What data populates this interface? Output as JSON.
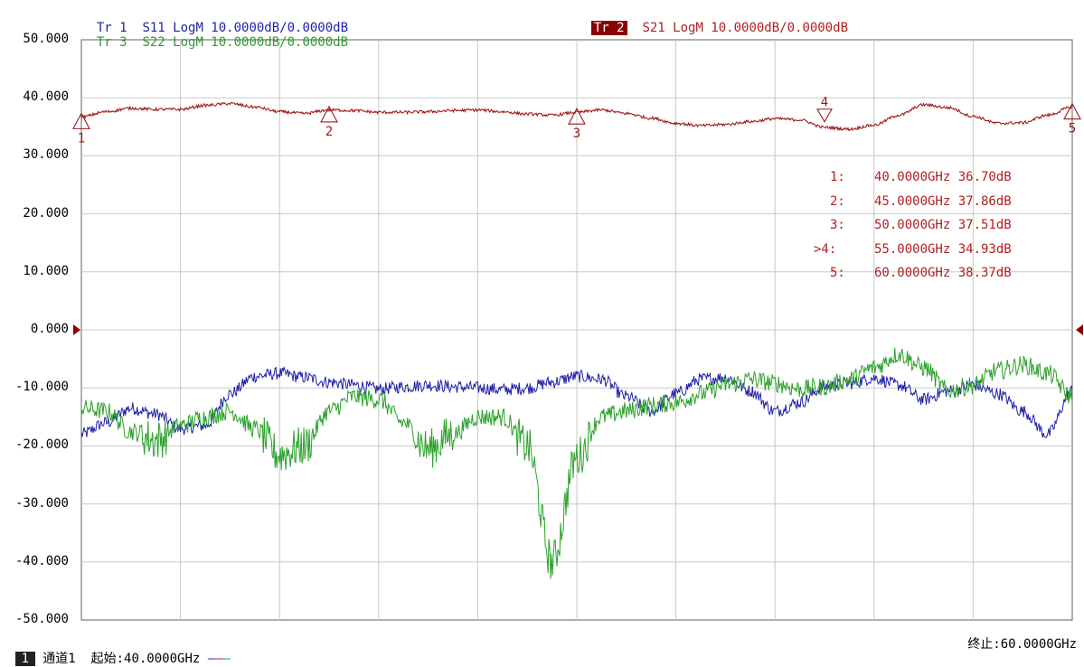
{
  "header": {
    "tr1_label": "Tr 1",
    "tr1_desc": "S11 LogM 10.0000dB/0.0000dB",
    "tr3_label": "Tr 3",
    "tr3_desc": "S22 LogM 10.0000dB/0.0000dB",
    "tr2_label": "Tr 2",
    "tr2_desc": "S21 LogM 10.0000dB/0.0000dB"
  },
  "footer": {
    "channel_num": "1",
    "channel_label": "通道1",
    "start_label": "起始:40.0000GHz",
    "stop_label": "终止:60.0000GHz"
  },
  "marker_table": [
    {
      "id": "1:",
      "freq": "40.0000GHz",
      "value": "36.70dB"
    },
    {
      "id": "2:",
      "freq": "45.0000GHz",
      "value": "37.86dB"
    },
    {
      "id": "3:",
      "freq": "50.0000GHz",
      "value": "37.51dB"
    },
    {
      "id": ">4:",
      "freq": "55.0000GHz",
      "value": "34.93dB"
    },
    {
      "id": "5:",
      "freq": "60.0000GHz",
      "value": "38.37dB"
    }
  ],
  "colors": {
    "s11": "#1f1fa8",
    "s21": "#a01818",
    "s22": "#2aa12a",
    "grid": "#c8c8c8",
    "reference": "#8b0000"
  },
  "chart_data": {
    "type": "line",
    "xlim": [
      40,
      60
    ],
    "ylim": [
      -50,
      50
    ],
    "x_divisions": 10,
    "yticks": [
      "50.000",
      "40.000",
      "30.000",
      "20.000",
      "10.000",
      "0.000",
      "-10.000",
      "-20.000",
      "-30.000",
      "-40.000",
      "-50.000"
    ],
    "reference_level": 0,
    "grid": true,
    "series": [
      {
        "name": "S21",
        "trace": "Tr 2",
        "color": "#a01818",
        "x": [
          40,
          40.5,
          41,
          41.5,
          42,
          42.5,
          43,
          43.5,
          44,
          44.5,
          45,
          45.5,
          46,
          46.5,
          47,
          47.5,
          48,
          48.5,
          49,
          49.5,
          50,
          50.5,
          51,
          51.5,
          52,
          52.5,
          53,
          53.5,
          54,
          54.5,
          55,
          55.5,
          56,
          56.5,
          57,
          57.5,
          58,
          58.5,
          59,
          59.5,
          60
        ],
        "values": [
          36.7,
          37.6,
          38.2,
          38.0,
          38.0,
          38.7,
          39.0,
          38.4,
          37.6,
          37.3,
          37.9,
          37.8,
          37.5,
          37.5,
          37.6,
          37.8,
          37.9,
          37.6,
          37.2,
          37.0,
          37.5,
          37.9,
          37.3,
          36.5,
          35.6,
          35.2,
          35.4,
          35.9,
          36.4,
          36.2,
          34.9,
          34.6,
          35.3,
          37.0,
          38.8,
          38.3,
          36.8,
          35.6,
          35.7,
          37.0,
          38.4
        ]
      },
      {
        "name": "S11",
        "trace": "Tr 1",
        "color": "#1f1fa8",
        "x": [
          40,
          40.5,
          41,
          41.5,
          42,
          42.5,
          43,
          43.5,
          44,
          44.5,
          45,
          45.5,
          46,
          46.5,
          47,
          47.5,
          48,
          48.5,
          49,
          49.5,
          50,
          50.5,
          51,
          51.5,
          52,
          52.5,
          53,
          53.5,
          54,
          54.5,
          55,
          55.5,
          56,
          56.5,
          57,
          57.5,
          58,
          58.5,
          59,
          59.5,
          60
        ],
        "values": [
          -18,
          -16,
          -13.5,
          -14.5,
          -17,
          -16.5,
          -11,
          -8,
          -7.5,
          -8.2,
          -9,
          -9.5,
          -10.2,
          -9.8,
          -9.5,
          -9.8,
          -10.0,
          -10.3,
          -10.0,
          -9.0,
          -8.0,
          -8.5,
          -11.5,
          -14.0,
          -11.0,
          -8.5,
          -8.2,
          -10.5,
          -14.0,
          -12.5,
          -9.8,
          -9.2,
          -8.3,
          -9.5,
          -12.0,
          -10.5,
          -9.5,
          -11.0,
          -14.0,
          -18.0,
          -10.5
        ]
      },
      {
        "name": "S22",
        "trace": "Tr 3",
        "color": "#2aa12a",
        "x": [
          40,
          40.5,
          41,
          41.5,
          42,
          42.5,
          43,
          43.5,
          44,
          44.5,
          45,
          45.5,
          46,
          46.5,
          47,
          47.5,
          48,
          48.5,
          49,
          49.5,
          50,
          50.5,
          51,
          51.5,
          52,
          52.5,
          53,
          53.5,
          54,
          54.5,
          55,
          55.5,
          56,
          56.5,
          57,
          57.5,
          58,
          58.5,
          59,
          59.5,
          60
        ],
        "values": [
          -13.5,
          -14,
          -17.5,
          -19,
          -16.5,
          -15,
          -14,
          -17,
          -21.5,
          -20,
          -14,
          -11.5,
          -12,
          -16,
          -20.5,
          -18,
          -15,
          -15,
          -20,
          -40,
          -22,
          -15,
          -14,
          -13,
          -12.5,
          -11,
          -9.5,
          -8.5,
          -9.2,
          -10.2,
          -9.8,
          -8.5,
          -6.5,
          -4.2,
          -6.5,
          -10.5,
          -9.5,
          -7.0,
          -6.0,
          -7.5,
          -11.5
        ]
      }
    ],
    "markers": [
      {
        "label": "1",
        "x": 40,
        "y": 36.7,
        "style": "up-triangle"
      },
      {
        "label": "2",
        "x": 45,
        "y": 37.86,
        "style": "up-triangle"
      },
      {
        "label": "3",
        "x": 50,
        "y": 37.51,
        "style": "up-triangle"
      },
      {
        "label": "4",
        "x": 55,
        "y": 34.93,
        "style": "down-triangle",
        "active": true
      },
      {
        "label": "5",
        "x": 60,
        "y": 38.37,
        "style": "up-triangle"
      }
    ]
  }
}
